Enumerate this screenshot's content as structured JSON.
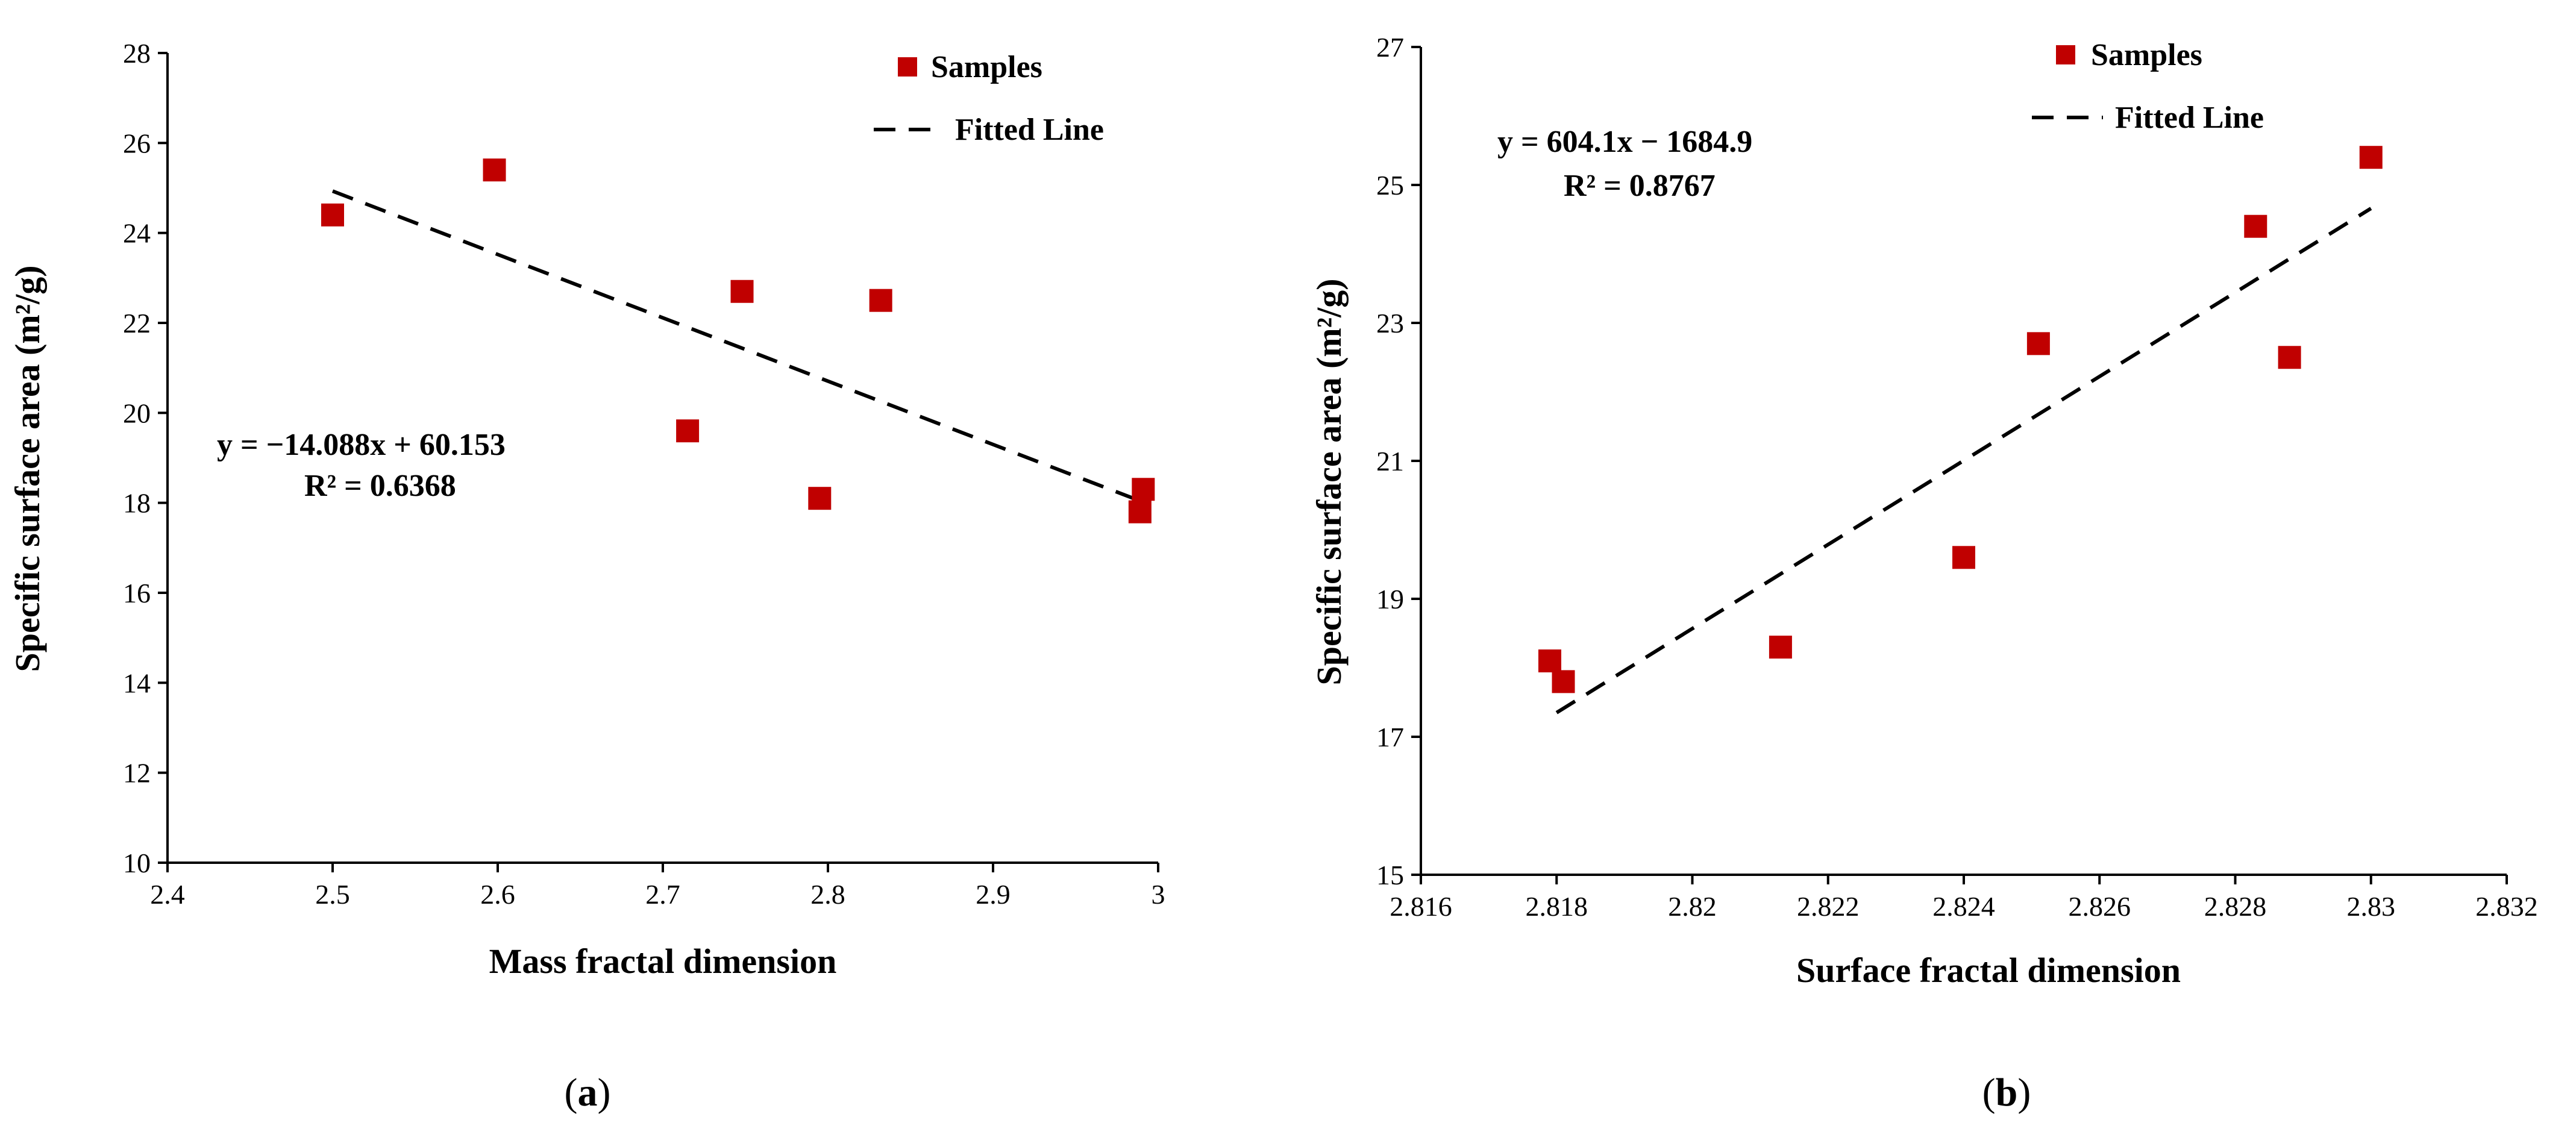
{
  "chart_data": [
    {
      "type": "scatter",
      "panel_label": "(a)",
      "xlabel": "Mass fractal dimension",
      "ylabel": "Specific surface area  (m²/g)",
      "xlim": [
        2.4,
        3.0
      ],
      "ylim": [
        10,
        28
      ],
      "xticks": [
        2.4,
        2.5,
        2.6,
        2.7,
        2.8,
        2.9,
        3.0
      ],
      "xtick_labels": [
        "2.4",
        "2.5",
        "2.6",
        "2.7",
        "2.8",
        "2.9",
        "3"
      ],
      "yticks": [
        10,
        12,
        14,
        16,
        18,
        20,
        22,
        24,
        26,
        28
      ],
      "ytick_labels": [
        "10",
        "12",
        "14",
        "16",
        "18",
        "20",
        "22",
        "24",
        "26",
        "28"
      ],
      "grid": false,
      "legend_position": "top-right",
      "series": [
        {
          "name": "Samples",
          "color": "#c00000",
          "marker": "square",
          "x": [
            2.5,
            2.598,
            2.715,
            2.748,
            2.795,
            2.832,
            2.989,
            2.991
          ],
          "y": [
            24.4,
            25.4,
            19.6,
            22.7,
            18.1,
            22.5,
            17.8,
            18.3
          ]
        },
        {
          "name": "Fitted Line",
          "color": "#000000",
          "style": "dashed",
          "x": [
            2.5,
            2.99
          ],
          "y": [
            24.93,
            18.03
          ]
        }
      ],
      "annotation": {
        "equation": "y = −14.088x + 60.153",
        "r2": "R² = 0.6368"
      }
    },
    {
      "type": "scatter",
      "panel_label": "(b)",
      "xlabel": "Surface fractal dimension",
      "ylabel": "Specific surface area  (m²/g)",
      "xlim": [
        2.816,
        2.832
      ],
      "ylim": [
        15,
        27
      ],
      "xticks": [
        2.816,
        2.818,
        2.82,
        2.822,
        2.824,
        2.826,
        2.828,
        2.83,
        2.832
      ],
      "xtick_labels": [
        "2.816",
        "2.818",
        "2.82",
        "2.822",
        "2.824",
        "2.826",
        "2.828",
        "2.83",
        "2.832"
      ],
      "yticks": [
        15,
        17,
        19,
        21,
        23,
        25,
        27
      ],
      "ytick_labels": [
        "15",
        "17",
        "19",
        "21",
        "23",
        "25",
        "27"
      ],
      "grid": false,
      "legend_position": "top-right",
      "series": [
        {
          "name": "Samples",
          "color": "#c00000",
          "marker": "square",
          "x": [
            2.8179,
            2.8181,
            2.8213,
            2.824,
            2.8251,
            2.8283,
            2.8288,
            2.83
          ],
          "y": [
            18.1,
            17.8,
            18.3,
            19.6,
            22.7,
            24.4,
            22.5,
            25.4
          ]
        },
        {
          "name": "Fitted Line",
          "color": "#000000",
          "style": "dashed",
          "x": [
            2.818,
            2.83
          ],
          "y": [
            17.35,
            24.66
          ]
        }
      ],
      "annotation": {
        "equation": "y = 604.1x − 1684.9",
        "r2": "R² = 0.8767"
      }
    }
  ]
}
